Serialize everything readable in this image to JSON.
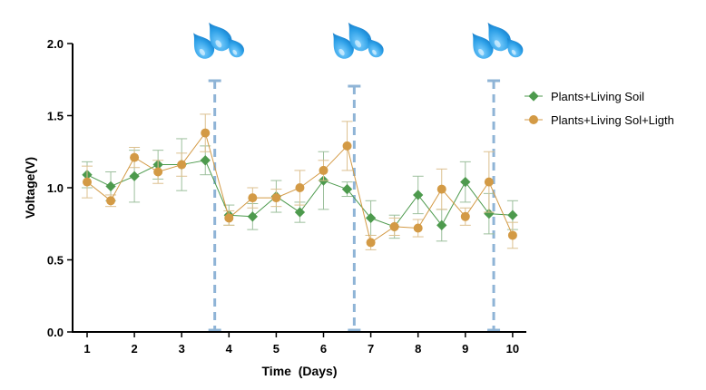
{
  "chart_data": {
    "type": "line",
    "title": "",
    "xlabel": "Time  (Days)",
    "ylabel": "Voltage(V)",
    "xlim": [
      0.75,
      10.3
    ],
    "ylim": [
      0,
      2.0
    ],
    "xticks": [
      1,
      2,
      3,
      4,
      5,
      6,
      7,
      8,
      9,
      10
    ],
    "xtick_labels": [
      "1",
      "2",
      "3",
      "4",
      "5",
      "6",
      "7",
      "8",
      "9",
      "10"
    ],
    "yticks": [
      0,
      0.5,
      1.0,
      1.5,
      2.0
    ],
    "ytick_labels": [
      "0.0",
      "0.5",
      "1.0",
      "1.5",
      "2.0"
    ],
    "legend_position": "right",
    "series": [
      {
        "name": "Plants+Living Soil",
        "color": "#4d9a4d",
        "marker": "diamond",
        "x": [
          1,
          1.5,
          2,
          2.5,
          3,
          3.5,
          4,
          4.5,
          5,
          5.5,
          6,
          6.5,
          7,
          7.5,
          8,
          8.5,
          9,
          9.5,
          10
        ],
        "y": [
          1.09,
          1.01,
          1.08,
          1.16,
          1.16,
          1.19,
          0.81,
          0.8,
          0.94,
          0.83,
          1.05,
          0.99,
          0.79,
          0.73,
          0.95,
          0.74,
          1.04,
          0.82,
          0.81
        ],
        "err": [
          0.09,
          0.1,
          0.18,
          0.1,
          0.18,
          0.1,
          0.07,
          0.09,
          0.11,
          0.07,
          0.2,
          0.05,
          0.12,
          0.08,
          0.13,
          0.11,
          0.14,
          0.14,
          0.1
        ]
      },
      {
        "name": "Plants+Living Sol+Ligth",
        "color": "#d39a45",
        "marker": "circle",
        "x": [
          1,
          1.5,
          2,
          2.5,
          3,
          3.5,
          4,
          4.5,
          5,
          5.5,
          6,
          6.5,
          7,
          7.5,
          8,
          8.5,
          9,
          9.5,
          10
        ],
        "y": [
          1.04,
          0.91,
          1.21,
          1.11,
          1.16,
          1.38,
          0.79,
          0.93,
          0.93,
          1.0,
          1.12,
          1.29,
          0.62,
          0.73,
          0.72,
          0.99,
          0.8,
          1.04,
          0.67
        ],
        "err": [
          0.11,
          0.04,
          0.07,
          0.08,
          0.08,
          0.13,
          0.05,
          0.07,
          0.06,
          0.12,
          0.07,
          0.17,
          0.05,
          0.06,
          0.06,
          0.14,
          0.06,
          0.21,
          0.09
        ]
      }
    ],
    "watering_events": [
      {
        "x": 3.7,
        "icon": "water-drops-icon"
      },
      {
        "x": 6.65,
        "icon": "water-drops-icon"
      },
      {
        "x": 9.6,
        "icon": "water-drops-icon"
      }
    ],
    "colors": {
      "watering_line": "#8fb4d6",
      "drop_fill": "#2a9ee6"
    }
  }
}
